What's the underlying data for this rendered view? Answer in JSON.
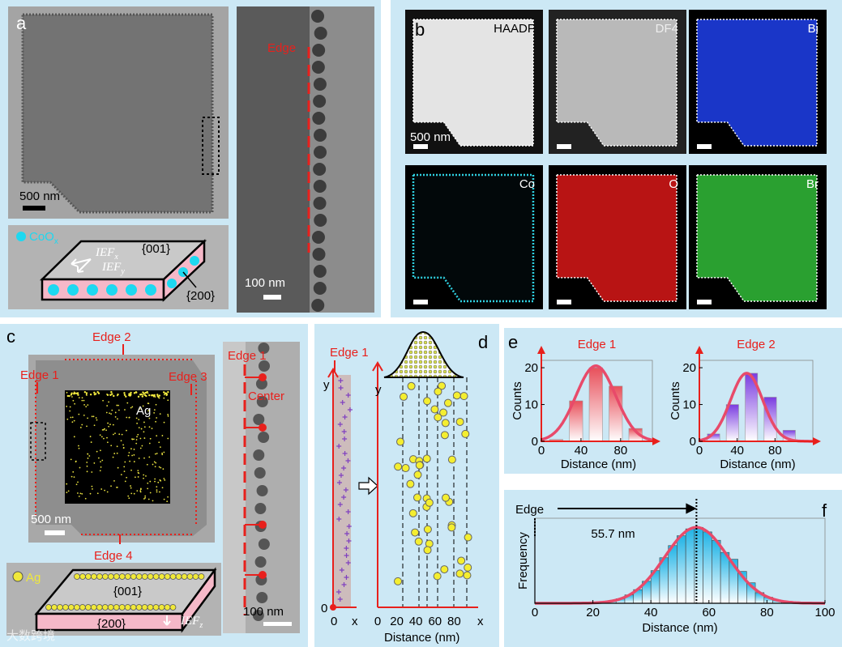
{
  "panel_a": {
    "label": "a",
    "scale_left": "500 nm",
    "edge": "Edge",
    "scale_right": "100 nm",
    "legend": {
      "text": "CoO",
      "sub": "x"
    },
    "ief_x": {
      "text": "IEF",
      "sub": "x"
    },
    "ief_y": {
      "text": "IEF",
      "sub": "y"
    },
    "facet_top": "{001}",
    "facet_side": "{200}"
  },
  "panel_b": {
    "label": "b",
    "maps": [
      "HAADF",
      "DF4",
      "Bi",
      "Co",
      "O",
      "Br"
    ],
    "scale": "500 nm"
  },
  "panel_c": {
    "label": "c",
    "edges": [
      "Edge 1",
      "Edge 2",
      "Edge 3",
      "Edge 4"
    ],
    "map": "Ag",
    "scale_left": "500 nm",
    "right_edge": "Edge 1",
    "center": "Center",
    "scale_right": "100 nm",
    "legend": "Ag",
    "facet_top": "{001}",
    "facet_side": "{200}",
    "ief_z": {
      "text": "IEF",
      "sub": "z"
    }
  },
  "panel_d": {
    "label": "d",
    "edge": "Edge 1",
    "left_y": "y",
    "left_origin": "0",
    "left_x_origin": "0",
    "left_x": "x",
    "right_y": "y",
    "right_x": "x",
    "xlabel": "Distance (nm)",
    "xlim": [
      0,
      100
    ],
    "xticks": [
      0,
      20,
      40,
      60,
      80
    ]
  },
  "panel_e": {
    "label": "e"
  },
  "panel_f": {
    "label": "f"
  },
  "watermark": "大数跨境",
  "chart_data": [
    {
      "type": "histogram",
      "title": "Edge 1",
      "bins": [
        5,
        25,
        45,
        65,
        85,
        105
      ],
      "values": [
        0.5,
        11,
        20,
        15,
        3.5
      ],
      "xlim": [
        0,
        112
      ],
      "ylim": [
        0,
        22
      ],
      "xticks": [
        0,
        40,
        80
      ],
      "yticks": [
        0,
        10,
        20
      ],
      "xlabel": "Distance (nm)",
      "ylabel": "Counts",
      "color": "#e8505b",
      "fit": {
        "mean": 55,
        "sd": 20,
        "peak": 20.5
      }
    },
    {
      "type": "histogram",
      "title": "Edge 2",
      "bins": [
        5,
        25,
        45,
        65,
        85,
        105
      ],
      "values": [
        2,
        10,
        18.5,
        12,
        3
      ],
      "xlim": [
        0,
        120
      ],
      "ylim": [
        0,
        22
      ],
      "xticks": [
        0,
        40,
        80
      ],
      "yticks": [
        0,
        10,
        20
      ],
      "xlabel": "Distance (nm)",
      "ylabel": "Counts",
      "color": "#7a3ce0",
      "fit": {
        "mean": 50,
        "sd": 17,
        "peak": 18.5
      }
    },
    {
      "type": "histogram",
      "bins": [
        22,
        25,
        28,
        31,
        34,
        37,
        40,
        43,
        46,
        49,
        52,
        55,
        58,
        61,
        64,
        67,
        70,
        73,
        76,
        79,
        82,
        85,
        88
      ],
      "values": [
        0.01,
        0.03,
        0.06,
        0.11,
        0.18,
        0.29,
        0.43,
        0.6,
        0.76,
        0.89,
        0.98,
        1.0,
        0.94,
        0.83,
        0.67,
        0.58,
        0.42,
        0.27,
        0.14,
        0.08,
        0.04,
        0.02
      ],
      "xlim": [
        0,
        100
      ],
      "ylim": [
        0,
        1.12
      ],
      "xticks": [
        0,
        20,
        40,
        60,
        80,
        100
      ],
      "xlabel": "Distance (nm)",
      "ylabel": "Frequency",
      "color": "#22b4e6",
      "fit": {
        "mean": 55.7,
        "sd": 11,
        "peak": 1.0
      },
      "annotation": "Edge",
      "marker": {
        "value": 55.7,
        "label": "55.7 nm"
      }
    }
  ]
}
